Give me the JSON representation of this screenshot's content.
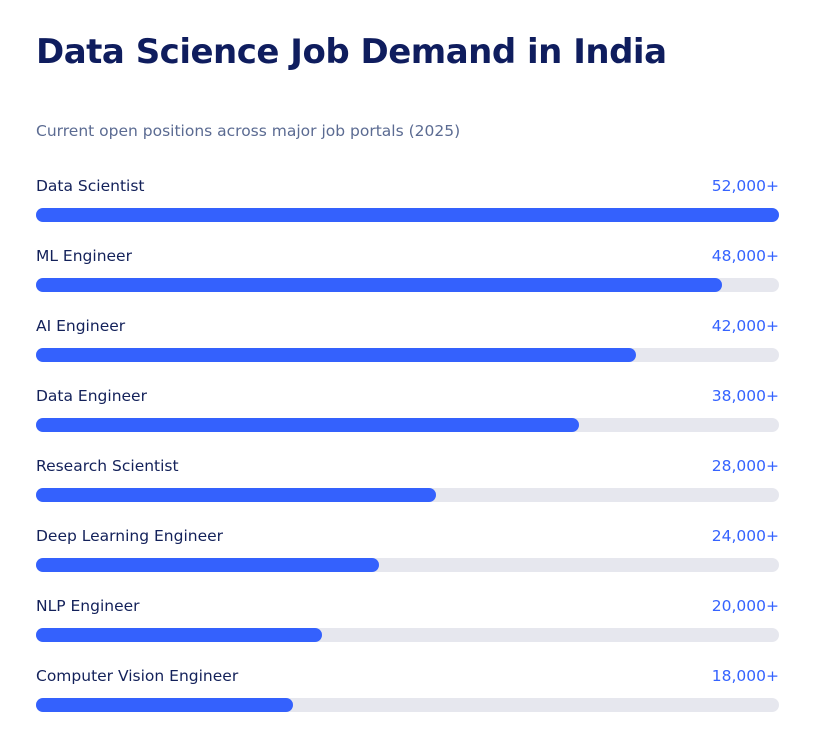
{
  "title": "Data Science Job Demand in India",
  "subtitle": "Current open positions across major job portals (2025)",
  "chart_data": {
    "type": "bar",
    "orientation": "horizontal",
    "title": "Data Science Job Demand in India",
    "subtitle": "Current open positions across major job portals (2025)",
    "categories": [
      "Data Scientist",
      "ML Engineer",
      "AI Engineer",
      "Data Engineer",
      "Research Scientist",
      "Deep Learning Engineer",
      "NLP Engineer",
      "Computer Vision Engineer"
    ],
    "values": [
      52000,
      48000,
      42000,
      38000,
      28000,
      24000,
      20000,
      18000
    ],
    "labels": [
      "52,000+",
      "48,000+",
      "42,000+",
      "38,000+",
      "28,000+",
      "24,000+",
      "20,000+",
      "18,000+"
    ],
    "xlim": [
      0,
      52000
    ],
    "bar_color": "#3461fd",
    "track_color": "#e6e7ee",
    "value_color": "#3563ff"
  }
}
